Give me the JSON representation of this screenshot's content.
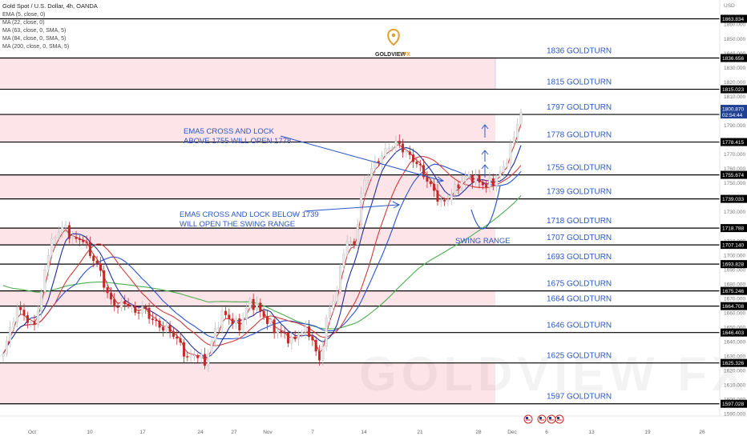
{
  "colors": {
    "zone_fill": "#fde4e8",
    "level_line": "#000000",
    "level_label": "#2b57c8",
    "candle_up": "#e8e8e8",
    "candle_down": "#c62828",
    "ema5": "#c62828",
    "ma22": "#1f2f9e",
    "ma63": "#d33a3a",
    "ma84": "#2952d6",
    "ma200": "#4caf50",
    "annotation": "#2b57c8",
    "current_badge": "#1f3f95"
  },
  "legend": {
    "title": "Gold Spot / U.S. Dollar, 4h, OANDA",
    "lines": [
      "EMA (5, close, 0)",
      "MA (22, close, 0)",
      "MA (63, close, 0, SMA, 5)",
      "MA (84, close, 0, SMA, 5)",
      "MA (200, close, 0, SMA, 5)"
    ]
  },
  "logo": {
    "name": "GOLDVIEW",
    "suffix": "FX",
    "icon": "location-pin-g-icon"
  },
  "watermark": "GOLDVIEW FX",
  "currency": "USD",
  "annotations": {
    "ema_up_line1": "EMA5 CROSS AND LOCK",
    "ema_up_line2": "ABOVE 1755 WILL OPEN 1778",
    "ema_down_line1": "EMA5 CROSS AND LOCK BELOW 1739",
    "ema_down_line2": "WILL OPEN THE SWING RANGE",
    "swing_range": "SWING RANGE"
  },
  "current_price": {
    "value": "1800.870",
    "countdown": "02:54:44"
  },
  "event_icons": [
    "us-flag-icon",
    "us-flag-icon",
    "us-flag-icon",
    "us-flag-icon"
  ],
  "chart_data": {
    "type": "candlestick",
    "title": "Gold Spot / U.S. Dollar, 4h, OANDA",
    "ylim": [
      1588,
      1868
    ],
    "y_ticks": [
      1590,
      1600,
      1610,
      1620,
      1630,
      1640,
      1650,
      1660,
      1670,
      1680,
      1690,
      1700,
      1710,
      1720,
      1730,
      1740,
      1750,
      1760,
      1770,
      1780,
      1790,
      1800,
      1810,
      1820,
      1830,
      1840,
      1850,
      1860
    ],
    "x_ticks": [
      "Oct",
      "10",
      "17",
      "24",
      "27",
      "Nov",
      "7",
      "14",
      "21",
      "28",
      "Dec",
      "6",
      "13",
      "19",
      "26"
    ],
    "levels": [
      {
        "label": "1836 GOLDTURN",
        "price": 1836.656,
        "badge": "1836.656"
      },
      {
        "label": "1815 GOLDTURN",
        "price": 1815.023,
        "badge": "1815.023"
      },
      {
        "label": "1797 GOLDTURN",
        "price": 1797.551,
        "badge": "1797.551"
      },
      {
        "label": "1778 GOLDTURN",
        "price": 1778.415,
        "badge": "1778.415"
      },
      {
        "label": "1755 GOLDTURN",
        "price": 1755.674,
        "badge": "1755.674"
      },
      {
        "label": "1739 GOLDTURN",
        "price": 1739.033,
        "badge": "1739.033"
      },
      {
        "label": "1718 GOLDTURN",
        "price": 1718.788,
        "badge": "1718.788"
      },
      {
        "label": "1707 GOLDTURN",
        "price": 1707.14,
        "badge": "1707.140"
      },
      {
        "label": "1693 GOLDTURN",
        "price": 1693.828,
        "badge": "1693.828"
      },
      {
        "label": "1675 GOLDTURN",
        "price": 1675.246,
        "badge": "1675.246"
      },
      {
        "label": "1664 GOLDTURN",
        "price": 1664.708,
        "badge": "1664.708"
      },
      {
        "label": "1646 GOLDTURN",
        "price": 1646.403,
        "badge": "1646.403"
      },
      {
        "label": "1625 GOLDTURN",
        "price": 1625.326,
        "badge": "1625.326"
      },
      {
        "label": "1597 GOLDTURN",
        "price": 1597.028,
        "badge": "1597.028"
      }
    ],
    "top_level": {
      "price": 1863.834,
      "badge": "1863.834"
    },
    "zones": [
      {
        "from": 1815.023,
        "to": 1836.656
      },
      {
        "from": 1778.415,
        "to": 1797.551
      },
      {
        "from": 1739.033,
        "to": 1755.674
      },
      {
        "from": 1707.14,
        "to": 1718.788
      },
      {
        "from": 1664.708,
        "to": 1675.246
      },
      {
        "from": 1597.028,
        "to": 1625.326
      }
    ],
    "close_path": [
      1630,
      1655,
      1664,
      1650,
      1660,
      1700,
      1715,
      1720,
      1710,
      1712,
      1700,
      1690,
      1670,
      1664,
      1668,
      1660,
      1664,
      1655,
      1650,
      1648,
      1640,
      1628,
      1632,
      1625,
      1645,
      1660,
      1655,
      1650,
      1668,
      1664,
      1655,
      1648,
      1645,
      1640,
      1648,
      1646,
      1625,
      1660,
      1675,
      1710,
      1707,
      1750,
      1760,
      1768,
      1775,
      1778,
      1770,
      1765,
      1755,
      1745,
      1735,
      1742,
      1750,
      1755,
      1752,
      1748,
      1752,
      1760,
      1778,
      1800
    ],
    "series": [
      {
        "name": "EMA (5, close, 0)"
      },
      {
        "name": "MA (22, close, 0)"
      },
      {
        "name": "MA (63, close, 0, SMA, 5)"
      },
      {
        "name": "MA (84, close, 0, SMA, 5)"
      },
      {
        "name": "MA (200, close, 0, SMA, 5)"
      }
    ]
  }
}
